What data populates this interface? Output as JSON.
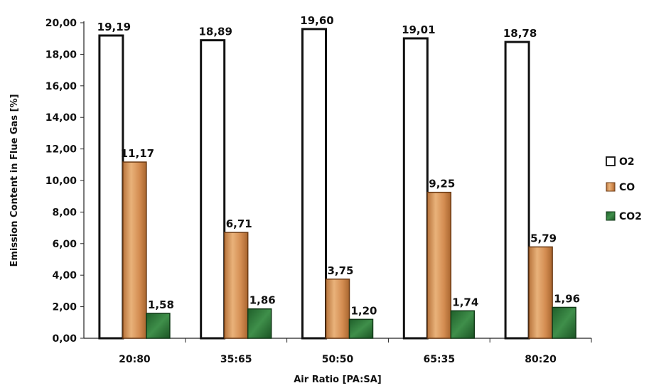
{
  "chart_data": {
    "type": "bar",
    "title": "",
    "xlabel": "Air Ratio [PA:SA]",
    "ylabel": "Emission Content in Flue Gas [%]",
    "categories": [
      "20:80",
      "35:65",
      "50:50",
      "65:35",
      "80:20"
    ],
    "series": [
      {
        "name": "O2",
        "values": [
          19.19,
          18.89,
          19.6,
          19.01,
          18.78
        ],
        "labels": [
          "19,19",
          "18,89",
          "19,60",
          "19,01",
          "18,78"
        ],
        "color": "#ffffff"
      },
      {
        "name": "CO",
        "values": [
          11.17,
          6.71,
          3.75,
          9.25,
          5.79
        ],
        "labels": [
          "11,17",
          "6,71",
          "3,75",
          "9,25",
          "5,79"
        ],
        "color": "#d99a62"
      },
      {
        "name": "CO2",
        "values": [
          1.58,
          1.86,
          1.2,
          1.74,
          1.96
        ],
        "labels": [
          "1,58",
          "1,86",
          "1,20",
          "1,74",
          "1,96"
        ],
        "color": "#2e7d3a"
      }
    ],
    "ylim": [
      0,
      20
    ],
    "yticks": [
      0,
      2,
      4,
      6,
      8,
      10,
      12,
      14,
      16,
      18,
      20
    ],
    "ytick_labels": [
      "0,00",
      "2,00",
      "4,00",
      "6,00",
      "8,00",
      "10,00",
      "12,00",
      "14,00",
      "16,00",
      "18,00",
      "20,00"
    ],
    "grid": false,
    "legend_position": "right"
  }
}
